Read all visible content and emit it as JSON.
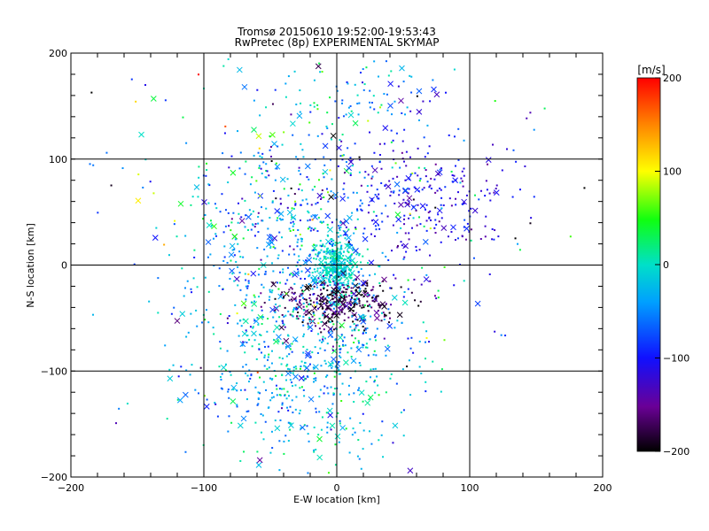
{
  "chart_data": {
    "type": "scatter",
    "title": "Tromsø 20150610 19:52:00-19:53:43",
    "subtitle": "RwPretec (8p) EXPERIMENTAL SKYMAP",
    "xlabel": "E-W location [km]",
    "ylabel": "N-S location [km]",
    "xlim": [
      -200,
      200
    ],
    "ylim": [
      -200,
      200
    ],
    "xticks": [
      -200,
      -100,
      0,
      100,
      200
    ],
    "yticks": [
      -200,
      -100,
      0,
      100,
      200
    ],
    "grid": true,
    "colorbar": {
      "label": "[m/s]",
      "range": [
        -200,
        200
      ],
      "ticks": [
        -200,
        -100,
        0,
        100,
        200
      ],
      "colormap": "black-purple-blue-cyan-green-yellow-red"
    },
    "markers": [
      "dot",
      "x"
    ],
    "point_count_approx": 2400
  }
}
